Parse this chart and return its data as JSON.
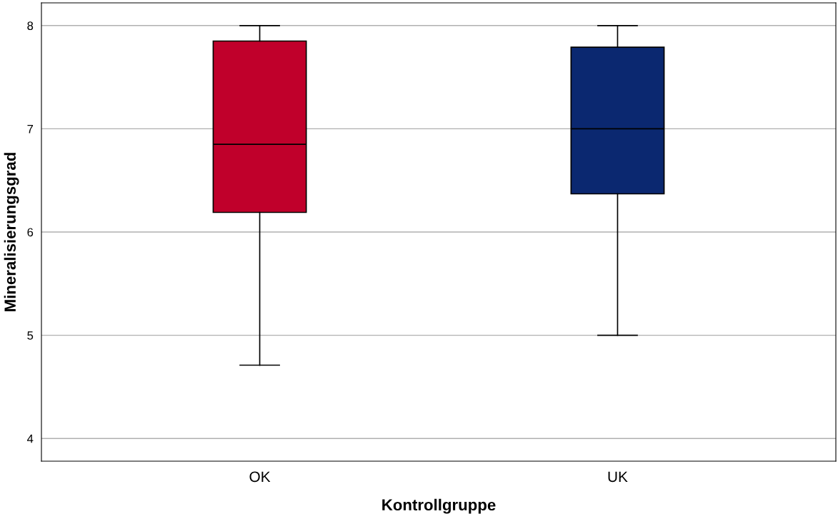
{
  "chart_data": {
    "type": "box",
    "xlabel": "Kontrollgruppe",
    "ylabel": "Mineralisierungsgrad",
    "categories": [
      "OK",
      "UK"
    ],
    "colors": [
      "#c0002b",
      "#0b2870"
    ],
    "boxes": [
      {
        "low": 4.71,
        "q1": 6.19,
        "median": 6.85,
        "q3": 7.85,
        "high": 8.0
      },
      {
        "low": 5.0,
        "q1": 6.37,
        "median": 7.0,
        "q3": 7.79,
        "high": 8.0
      }
    ],
    "ylim": [
      3.78,
      8.22
    ],
    "yticks": [
      4,
      5,
      6,
      7,
      8
    ],
    "grid": "y",
    "legend": false
  }
}
